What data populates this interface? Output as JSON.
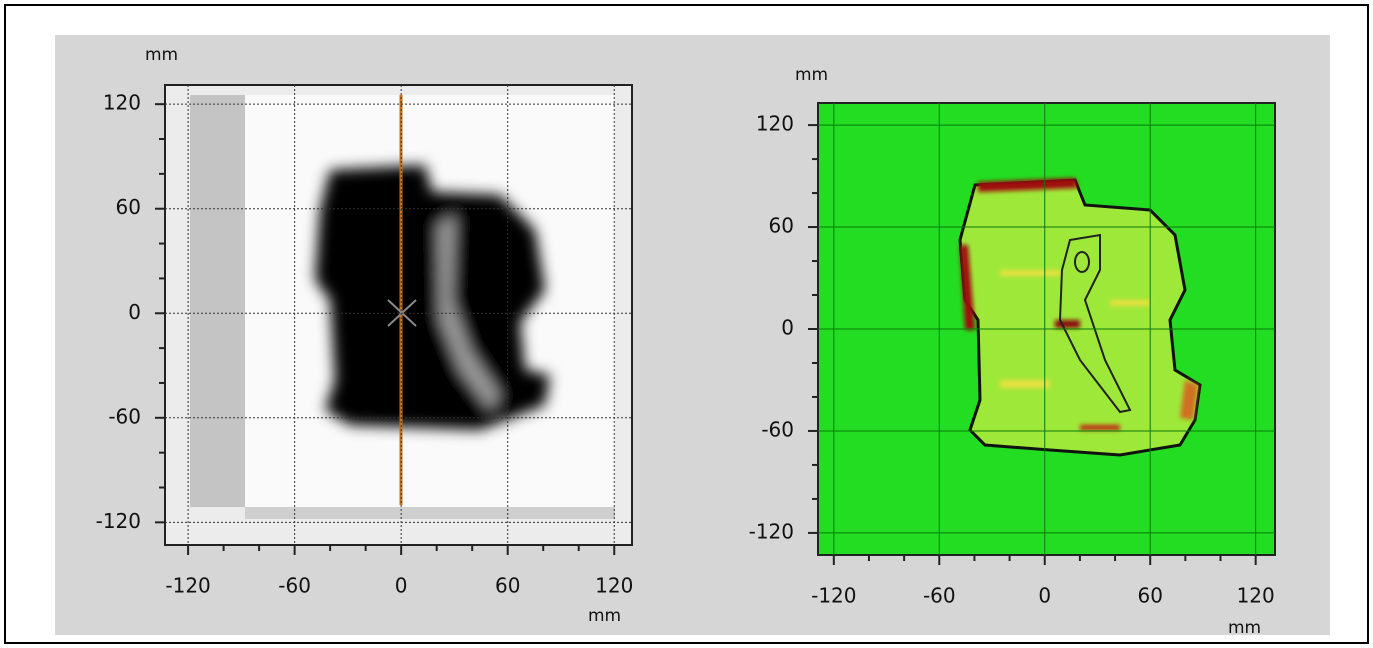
{
  "panels": [
    {
      "y_unit": "mm",
      "x_unit": "mm",
      "xlim": [
        -133,
        130
      ],
      "ylim": [
        -133,
        131
      ],
      "xticks": [
        -120,
        -60,
        0,
        60,
        120
      ],
      "yticks": [
        -120,
        -60,
        0,
        60,
        120
      ]
    },
    {
      "y_unit": "mm",
      "x_unit": "mm",
      "xlim": [
        -129,
        131
      ],
      "ylim": [
        -133,
        133
      ],
      "xticks": [
        -120,
        -60,
        0,
        60,
        120
      ],
      "yticks": [
        -120,
        -60,
        0,
        60,
        120
      ]
    }
  ]
}
